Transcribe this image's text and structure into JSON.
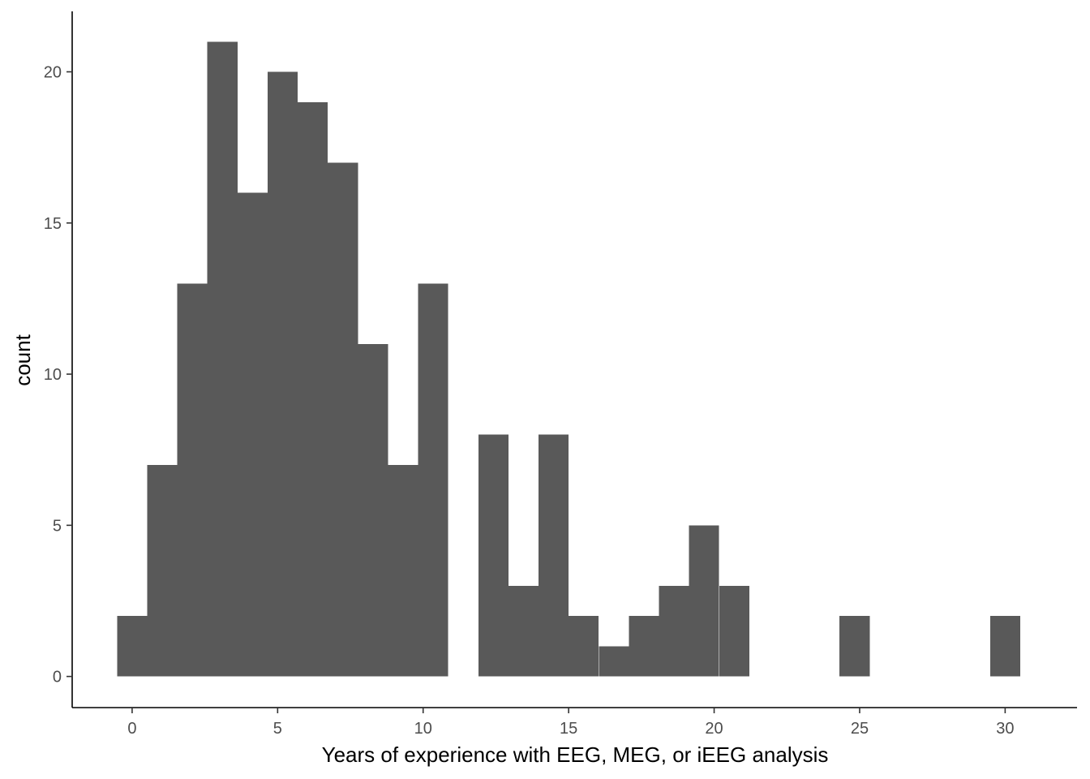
{
  "chart_data": {
    "type": "bar",
    "subtype": "histogram",
    "xlabel": "Years of experience with EEG, MEG, or iEEG analysis",
    "ylabel": "count",
    "bin_width": 1.034,
    "bins": [
      {
        "center": 0,
        "count": 2
      },
      {
        "center": 1.034,
        "count": 7
      },
      {
        "center": 2.069,
        "count": 13
      },
      {
        "center": 3.103,
        "count": 21
      },
      {
        "center": 4.138,
        "count": 16
      },
      {
        "center": 5.172,
        "count": 20
      },
      {
        "center": 6.207,
        "count": 19
      },
      {
        "center": 7.241,
        "count": 17
      },
      {
        "center": 8.276,
        "count": 11
      },
      {
        "center": 9.31,
        "count": 7
      },
      {
        "center": 10.345,
        "count": 13
      },
      {
        "center": 11.379,
        "count": 0
      },
      {
        "center": 12.414,
        "count": 8
      },
      {
        "center": 13.448,
        "count": 3
      },
      {
        "center": 14.483,
        "count": 8
      },
      {
        "center": 15.517,
        "count": 2
      },
      {
        "center": 16.552,
        "count": 1
      },
      {
        "center": 17.586,
        "count": 2
      },
      {
        "center": 18.621,
        "count": 3
      },
      {
        "center": 19.655,
        "count": 5
      },
      {
        "center": 20.69,
        "count": 3
      },
      {
        "center": 21.724,
        "count": 0
      },
      {
        "center": 22.759,
        "count": 0
      },
      {
        "center": 23.793,
        "count": 0
      },
      {
        "center": 24.828,
        "count": 2
      },
      {
        "center": 25.862,
        "count": 0
      },
      {
        "center": 26.897,
        "count": 0
      },
      {
        "center": 27.931,
        "count": 0
      },
      {
        "center": 28.966,
        "count": 0
      },
      {
        "center": 30,
        "count": 2
      }
    ],
    "xlim": [
      -2.06,
      32.47
    ],
    "ylim": [
      -1.03,
      22.0
    ],
    "xticks": [
      {
        "value": 0,
        "label": "0"
      },
      {
        "value": 5,
        "label": "5"
      },
      {
        "value": 10,
        "label": "10"
      },
      {
        "value": 15,
        "label": "15"
      },
      {
        "value": 20,
        "label": "20"
      },
      {
        "value": 25,
        "label": "25"
      },
      {
        "value": 30,
        "label": "30"
      }
    ],
    "yticks": [
      {
        "value": 0,
        "label": "0"
      },
      {
        "value": 5,
        "label": "5"
      },
      {
        "value": 10,
        "label": "10"
      },
      {
        "value": 15,
        "label": "15"
      },
      {
        "value": 20,
        "label": "20"
      }
    ],
    "grid": false,
    "bar_color": "#595959",
    "axis_color": "#000000",
    "tick_label_color": "#4d4d4d"
  }
}
